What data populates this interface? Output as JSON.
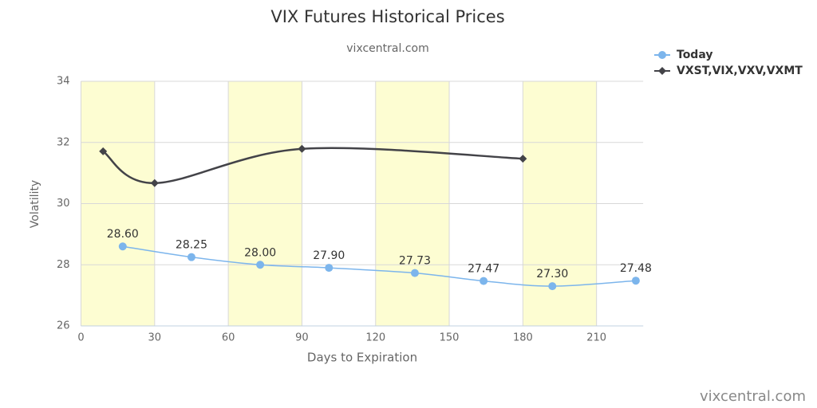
{
  "chart_data": {
    "type": "line",
    "title": "VIX Futures Historical Prices",
    "subtitle": "vixcentral.com",
    "credits": "vixcentral.com",
    "x_label": "Days to Expiration",
    "y_label": "Volatility",
    "xlim": [
      0,
      229
    ],
    "xticks": [
      0,
      30,
      60,
      90,
      120,
      150,
      180,
      210
    ],
    "ylim": [
      26,
      34
    ],
    "yticks": [
      26,
      28,
      30,
      32,
      34
    ],
    "bands": [
      [
        0,
        30
      ],
      [
        60,
        90
      ],
      [
        120,
        150
      ],
      [
        180,
        210
      ]
    ],
    "band_color": "#fdfdd2",
    "grid": true,
    "smooth": true,
    "legend": "top-right",
    "series": [
      {
        "name": "Today",
        "color": "#7cb5ec",
        "marker": "circle",
        "x": [
          17,
          45,
          73,
          101,
          136,
          164,
          192,
          226
        ],
        "values": [
          28.6,
          28.25,
          28.0,
          27.9,
          27.73,
          27.47,
          27.3,
          27.48
        ],
        "value_labels": [
          "28.60",
          "28.25",
          "28.00",
          "27.90",
          "27.73",
          "27.47",
          "27.30",
          "27.48"
        ]
      },
      {
        "name": "VXST,VIX,VXV,VXMT",
        "color": "#434348",
        "marker": "diamond",
        "x": [
          9,
          30,
          90,
          180
        ],
        "values": [
          31.71,
          30.67,
          31.79,
          31.47
        ]
      }
    ]
  }
}
